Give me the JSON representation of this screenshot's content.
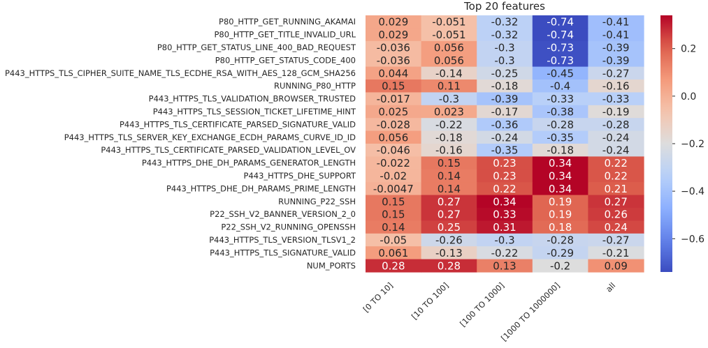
{
  "chart_data": {
    "type": "heatmap",
    "title": "Top 20 features",
    "xlabel": "",
    "ylabel": "",
    "colormap": "coolwarm",
    "vmin": -0.74,
    "vmax": 0.34,
    "colorbar_ticks": [
      "0.2",
      "0.0",
      "−0.2",
      "−0.4",
      "−0.6"
    ],
    "colorbar_tick_values": [
      0.2,
      0.0,
      -0.2,
      -0.4,
      -0.6
    ],
    "columns": [
      "[0 TO 10]",
      "[10 TO 100]",
      "[100 TO 1000]",
      "[1000 TO 1000000]",
      "all"
    ],
    "rows": [
      "P80_HTTP_GET_RUNNING_AKAMAI",
      "P80_HTTP_GET_TITLE_INVALID_URL",
      "P80_HTTP_GET_STATUS_LINE_400_BAD_REQUEST",
      "P80_HTTP_GET_STATUS_CODE_400",
      "P443_HTTPS_TLS_CIPHER_SUITE_NAME_TLS_ECDHE_RSA_WITH_AES_128_GCM_SHA256",
      "RUNNING_P80_HTTP",
      "P443_HTTPS_TLS_VALIDATION_BROWSER_TRUSTED",
      "P443_HTTPS_TLS_SESSION_TICKET_LIFETIME_HINT",
      "P443_HTTPS_TLS_CERTIFICATE_PARSED_SIGNATURE_VALID",
      "P443_HTTPS_TLS_SERVER_KEY_EXCHANGE_ECDH_PARAMS_CURVE_ID_ID",
      "P443_HTTPS_TLS_CERTIFICATE_PARSED_VALIDATION_LEVEL_OV",
      "P443_HTTPS_DHE_DH_PARAMS_GENERATOR_LENGTH",
      "P443_HTTPS_DHE_SUPPORT",
      "P443_HTTPS_DHE_DH_PARAMS_PRIME_LENGTH",
      "RUNNING_P22_SSH",
      "P22_SSH_V2_BANNER_VERSION_2_0",
      "P22_SSH_V2_RUNNING_OPENSSH",
      "P443_HTTPS_TLS_VERSION_TLSV1_2",
      "P443_HTTPS_TLS_SIGNATURE_VALID",
      "NUM_PORTS"
    ],
    "values": [
      [
        0.029,
        -0.051,
        -0.32,
        -0.74,
        -0.41
      ],
      [
        0.029,
        -0.051,
        -0.32,
        -0.74,
        -0.41
      ],
      [
        -0.036,
        0.056,
        -0.3,
        -0.73,
        -0.39
      ],
      [
        -0.036,
        0.056,
        -0.3,
        -0.73,
        -0.39
      ],
      [
        0.044,
        -0.14,
        -0.25,
        -0.45,
        -0.27
      ],
      [
        0.15,
        0.11,
        -0.18,
        -0.4,
        -0.16
      ],
      [
        -0.017,
        -0.3,
        -0.39,
        -0.33,
        -0.33
      ],
      [
        0.025,
        0.023,
        -0.17,
        -0.38,
        -0.19
      ],
      [
        -0.028,
        -0.22,
        -0.36,
        -0.28,
        -0.28
      ],
      [
        0.056,
        -0.18,
        -0.24,
        -0.35,
        -0.24
      ],
      [
        -0.046,
        -0.16,
        -0.35,
        -0.18,
        -0.24
      ],
      [
        -0.022,
        0.15,
        0.23,
        0.34,
        0.22
      ],
      [
        -0.02,
        0.14,
        0.23,
        0.34,
        0.22
      ],
      [
        -0.0047,
        0.14,
        0.22,
        0.34,
        0.21
      ],
      [
        0.15,
        0.27,
        0.34,
        0.19,
        0.27
      ],
      [
        0.15,
        0.27,
        0.33,
        0.19,
        0.26
      ],
      [
        0.14,
        0.25,
        0.31,
        0.18,
        0.24
      ],
      [
        -0.05,
        -0.26,
        -0.3,
        -0.28,
        -0.27
      ],
      [
        0.061,
        -0.13,
        -0.22,
        -0.29,
        -0.21
      ],
      [
        0.28,
        0.28,
        0.13,
        -0.2,
        0.09
      ]
    ],
    "cell_labels": [
      [
        "0.029",
        "-0.051",
        "-0.32",
        "-0.74",
        "-0.41"
      ],
      [
        "0.029",
        "-0.051",
        "-0.32",
        "-0.74",
        "-0.41"
      ],
      [
        "-0.036",
        "0.056",
        "-0.3",
        "-0.73",
        "-0.39"
      ],
      [
        "-0.036",
        "0.056",
        "-0.3",
        "-0.73",
        "-0.39"
      ],
      [
        "0.044",
        "-0.14",
        "-0.25",
        "-0.45",
        "-0.27"
      ],
      [
        "0.15",
        "0.11",
        "-0.18",
        "-0.4",
        "-0.16"
      ],
      [
        "-0.017",
        "-0.3",
        "-0.39",
        "-0.33",
        "-0.33"
      ],
      [
        "0.025",
        "0.023",
        "-0.17",
        "-0.38",
        "-0.19"
      ],
      [
        "-0.028",
        "-0.22",
        "-0.36",
        "-0.28",
        "-0.28"
      ],
      [
        "0.056",
        "-0.18",
        "-0.24",
        "-0.35",
        "-0.24"
      ],
      [
        "-0.046",
        "-0.16",
        "-0.35",
        "-0.18",
        "-0.24"
      ],
      [
        "-0.022",
        "0.15",
        "0.23",
        "0.34",
        "0.22"
      ],
      [
        "-0.02",
        "0.14",
        "0.23",
        "0.34",
        "0.22"
      ],
      [
        "-0.0047",
        "0.14",
        "0.22",
        "0.34",
        "0.21"
      ],
      [
        "0.15",
        "0.27",
        "0.34",
        "0.19",
        "0.27"
      ],
      [
        "0.15",
        "0.27",
        "0.33",
        "0.19",
        "0.26"
      ],
      [
        "0.14",
        "0.25",
        "0.31",
        "0.18",
        "0.24"
      ],
      [
        "-0.05",
        "-0.26",
        "-0.3",
        "-0.28",
        "-0.27"
      ],
      [
        "0.061",
        "-0.13",
        "-0.22",
        "-0.29",
        "-0.21"
      ],
      [
        "0.28",
        "0.28",
        "0.13",
        "-0.2",
        "0.09"
      ]
    ],
    "grid": false,
    "legend": "colorbar-right"
  }
}
